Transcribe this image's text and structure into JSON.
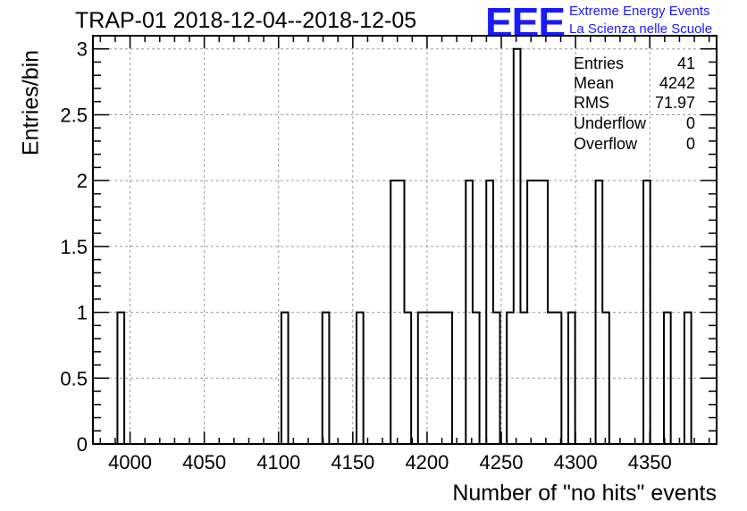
{
  "title": "TRAP-01 2018-12-04--2018-12-05",
  "logo": {
    "mark": "EEE",
    "line1": "Extreme Energy Events",
    "line2": "La Scienza nelle Scuole"
  },
  "stats": [
    {
      "name": "Entries",
      "value": "41"
    },
    {
      "name": "Mean",
      "value": "4242"
    },
    {
      "name": "RMS",
      "value": "71.97"
    },
    {
      "name": "Underflow",
      "value": "0"
    },
    {
      "name": "Overflow",
      "value": "0"
    }
  ],
  "chart_data": {
    "type": "bar",
    "style": "step-histogram",
    "xlabel": "Number of \"no hits\" events",
    "ylabel": "Entries/bin",
    "xlim": [
      3975,
      4395
    ],
    "ylim": [
      0,
      3.1
    ],
    "bin_width": 4.6,
    "xticks": [
      4000,
      4050,
      4100,
      4150,
      4200,
      4250,
      4300,
      4350
    ],
    "yticks": [
      0,
      0.5,
      1,
      1.5,
      2,
      2.5,
      3
    ],
    "grid": true,
    "bins": [
      {
        "x": 3991.5,
        "y": 1
      },
      {
        "x": 4101.9,
        "y": 1
      },
      {
        "x": 4129.5,
        "y": 1
      },
      {
        "x": 4152.5,
        "y": 1
      },
      {
        "x": 4175.5,
        "y": 2
      },
      {
        "x": 4180.1,
        "y": 2
      },
      {
        "x": 4184.7,
        "y": 1
      },
      {
        "x": 4193.9,
        "y": 1
      },
      {
        "x": 4198.5,
        "y": 1
      },
      {
        "x": 4203.1,
        "y": 1
      },
      {
        "x": 4207.7,
        "y": 1
      },
      {
        "x": 4212.3,
        "y": 1
      },
      {
        "x": 4226.1,
        "y": 2
      },
      {
        "x": 4230.7,
        "y": 1
      },
      {
        "x": 4239.9,
        "y": 2
      },
      {
        "x": 4244.5,
        "y": 1
      },
      {
        "x": 4253.7,
        "y": 1
      },
      {
        "x": 4258.3,
        "y": 3
      },
      {
        "x": 4262.9,
        "y": 1
      },
      {
        "x": 4267.5,
        "y": 2
      },
      {
        "x": 4272.1,
        "y": 2
      },
      {
        "x": 4276.7,
        "y": 2
      },
      {
        "x": 4281.3,
        "y": 1
      },
      {
        "x": 4285.9,
        "y": 1
      },
      {
        "x": 4295.1,
        "y": 1
      },
      {
        "x": 4313.5,
        "y": 2
      },
      {
        "x": 4318.1,
        "y": 1
      },
      {
        "x": 4345.7,
        "y": 2
      },
      {
        "x": 4359.5,
        "y": 1
      },
      {
        "x": 4373.3,
        "y": 1
      }
    ]
  }
}
